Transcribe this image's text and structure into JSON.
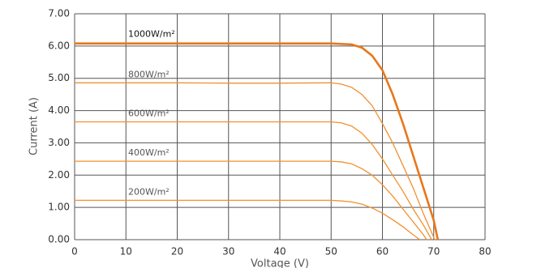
{
  "chart_data": {
    "type": "line",
    "x_label": "Voltage (V)",
    "y_label": "Current (A)",
    "xlim": [
      0,
      80
    ],
    "xticks": [
      0,
      10,
      20,
      30,
      40,
      50,
      60,
      70,
      80
    ],
    "ylim": [
      0,
      7
    ],
    "yticks": [
      {
        "value": 0,
        "label": "0.00"
      },
      {
        "value": 1,
        "label": "1.00"
      },
      {
        "value": 2,
        "label": "2.00"
      },
      {
        "value": 3,
        "label": "3.00"
      },
      {
        "value": 4,
        "label": "4.00"
      },
      {
        "value": 5,
        "label": "5.00"
      },
      {
        "value": 6,
        "label": "6.00"
      },
      {
        "value": 7,
        "label": "7.00"
      }
    ],
    "grid": true,
    "series": [
      {
        "name": "1000W/m²",
        "color": "#e8771a",
        "x": [
          0,
          10,
          20,
          30,
          40,
          50,
          54,
          56,
          58,
          60,
          62,
          64,
          66,
          68,
          70,
          70.8
        ],
        "values": [
          6.08,
          6.08,
          6.08,
          6.08,
          6.08,
          6.08,
          6.05,
          5.95,
          5.7,
          5.25,
          4.5,
          3.6,
          2.6,
          1.6,
          0.6,
          0
        ]
      },
      {
        "name": "800W/m²",
        "color": "#f0912f",
        "x": [
          0,
          10,
          20,
          30,
          40,
          50,
          52,
          54,
          56,
          58,
          60,
          62,
          64,
          66,
          68,
          70.2
        ],
        "values": [
          4.86,
          4.86,
          4.86,
          4.85,
          4.85,
          4.86,
          4.82,
          4.72,
          4.5,
          4.15,
          3.6,
          3.0,
          2.3,
          1.6,
          0.8,
          0
        ]
      },
      {
        "name": "600W/m²",
        "color": "#f0912f",
        "x": [
          0,
          10,
          20,
          30,
          40,
          50,
          52,
          54,
          56,
          58,
          60,
          62,
          64,
          66,
          68,
          69.6
        ],
        "values": [
          3.65,
          3.65,
          3.65,
          3.65,
          3.65,
          3.65,
          3.62,
          3.52,
          3.3,
          2.95,
          2.5,
          2.0,
          1.5,
          0.95,
          0.45,
          0
        ]
      },
      {
        "name": "400W/m²",
        "color": "#f0912f",
        "x": [
          0,
          10,
          20,
          30,
          40,
          50,
          52,
          54,
          56,
          58,
          60,
          62,
          64,
          66,
          68,
          68.6
        ],
        "values": [
          2.43,
          2.43,
          2.43,
          2.43,
          2.43,
          2.43,
          2.41,
          2.35,
          2.2,
          2.0,
          1.7,
          1.35,
          0.95,
          0.55,
          0.15,
          0
        ]
      },
      {
        "name": "200W/m²",
        "color": "#f0912f",
        "x": [
          0,
          10,
          20,
          30,
          40,
          50,
          52,
          54,
          56,
          58,
          60,
          62,
          64,
          66,
          67.3
        ],
        "values": [
          1.22,
          1.22,
          1.22,
          1.22,
          1.22,
          1.22,
          1.2,
          1.17,
          1.1,
          0.98,
          0.82,
          0.62,
          0.4,
          0.15,
          0
        ]
      }
    ]
  }
}
